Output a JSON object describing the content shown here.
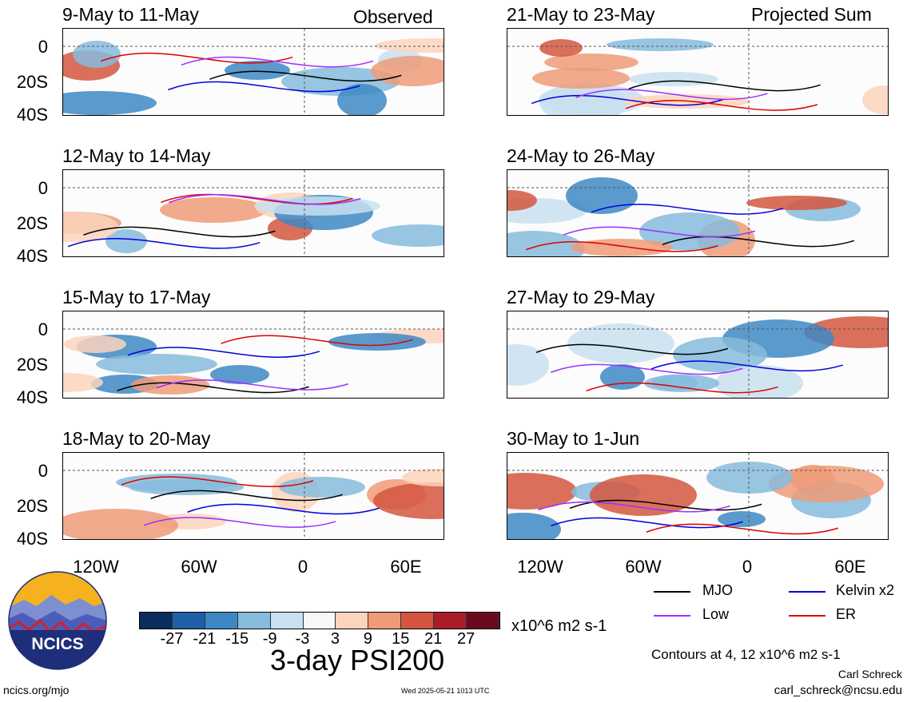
{
  "header": {
    "observed_label": "Observed",
    "projected_label": "Projected Sum"
  },
  "chart_data": [
    {
      "type": "heatmap",
      "title": "9-May to 11-May",
      "column": "Observed"
    },
    {
      "type": "heatmap",
      "title": "12-May to 14-May",
      "column": "Observed"
    },
    {
      "type": "heatmap",
      "title": "15-May to 17-May",
      "column": "Observed"
    },
    {
      "type": "heatmap",
      "title": "18-May to 20-May",
      "column": "Observed"
    },
    {
      "type": "heatmap",
      "title": "21-May to 23-May",
      "column": "Projected Sum"
    },
    {
      "type": "heatmap",
      "title": "24-May to 26-May",
      "column": "Projected Sum"
    },
    {
      "type": "heatmap",
      "title": "27-May to 29-May",
      "column": "Projected Sum"
    },
    {
      "type": "heatmap",
      "title": "30-May to 1-Jun",
      "column": "Projected Sum"
    }
  ],
  "axes": {
    "y_ticks": [
      "0",
      "20S",
      "40S"
    ],
    "x_ticks": [
      "120W",
      "60W",
      "0",
      "60E"
    ]
  },
  "colorbar": {
    "ticks": [
      "-27",
      "-21",
      "-15",
      "-9",
      "-3",
      "3",
      "9",
      "15",
      "21",
      "27"
    ],
    "units": "x10^6 m2 s-1",
    "colors": [
      "#0a2d5c",
      "#1f5fa8",
      "#3d88c4",
      "#86bbdc",
      "#c8e0ef",
      "#f7f7f7",
      "#fcd3bc",
      "#ef9b78",
      "#d4563f",
      "#a81d2a",
      "#6b0a1e"
    ]
  },
  "legend": {
    "mjo": "MJO",
    "low": "Low",
    "kelvin": "Kelvin x2",
    "er": "ER",
    "mjo_color": "#000000",
    "low_color": "#9b30ff",
    "kelvin_color": "#0000dd",
    "er_color": "#e00000"
  },
  "footer": {
    "main_title": "3-day PSI200",
    "contours_note": "Contours at 4, 12 x10^6 m2 s-1",
    "author": "Carl Schreck",
    "email": "carl_schreck@ncsu.edu",
    "url": "ncics.org/mjo",
    "timestamp": "Wed 2025-05-21 1013 UTC",
    "logo_text": "NCICS"
  }
}
